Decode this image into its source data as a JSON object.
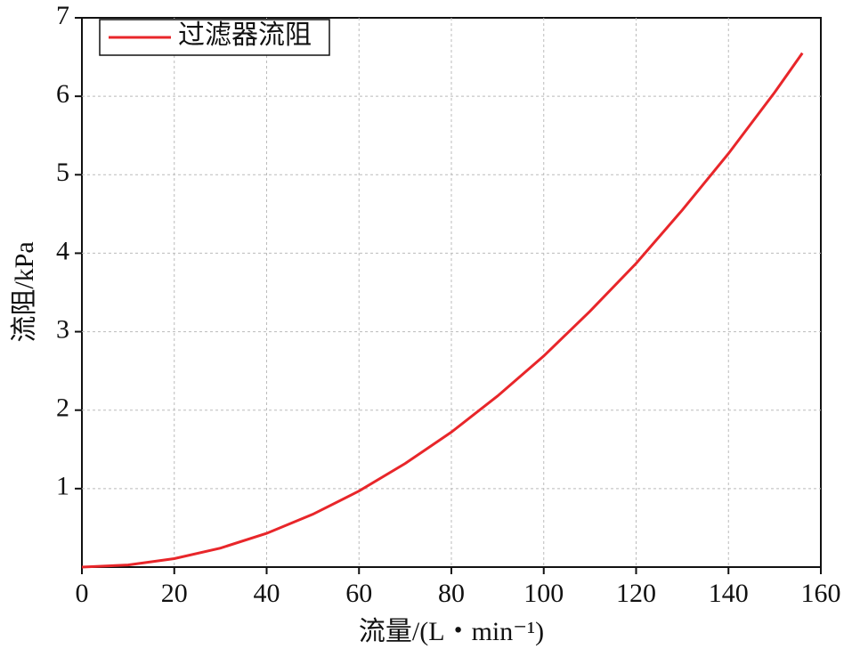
{
  "chart_data": {
    "type": "line",
    "x_label": "流量/(L・min⁻¹)",
    "y_label": "流阻/kPa",
    "x": [
      0,
      10,
      20,
      30,
      40,
      50,
      60,
      70,
      80,
      90,
      100,
      110,
      120,
      130,
      140,
      150,
      156
    ],
    "series": [
      {
        "name": "过滤器流阻",
        "color": "#e8262a",
        "values": [
          0,
          0.027,
          0.108,
          0.242,
          0.43,
          0.673,
          0.969,
          1.32,
          1.72,
          2.18,
          2.69,
          3.26,
          3.87,
          4.55,
          5.27,
          6.05,
          6.55
        ]
      }
    ],
    "xlim": [
      0,
      160
    ],
    "xticks": [
      0,
      20,
      40,
      60,
      80,
      100,
      120,
      140,
      160
    ],
    "ylim": [
      0,
      7
    ],
    "yticks": [
      1,
      2,
      3,
      4,
      5,
      6,
      7
    ],
    "grid": true,
    "legend": "upper left"
  }
}
